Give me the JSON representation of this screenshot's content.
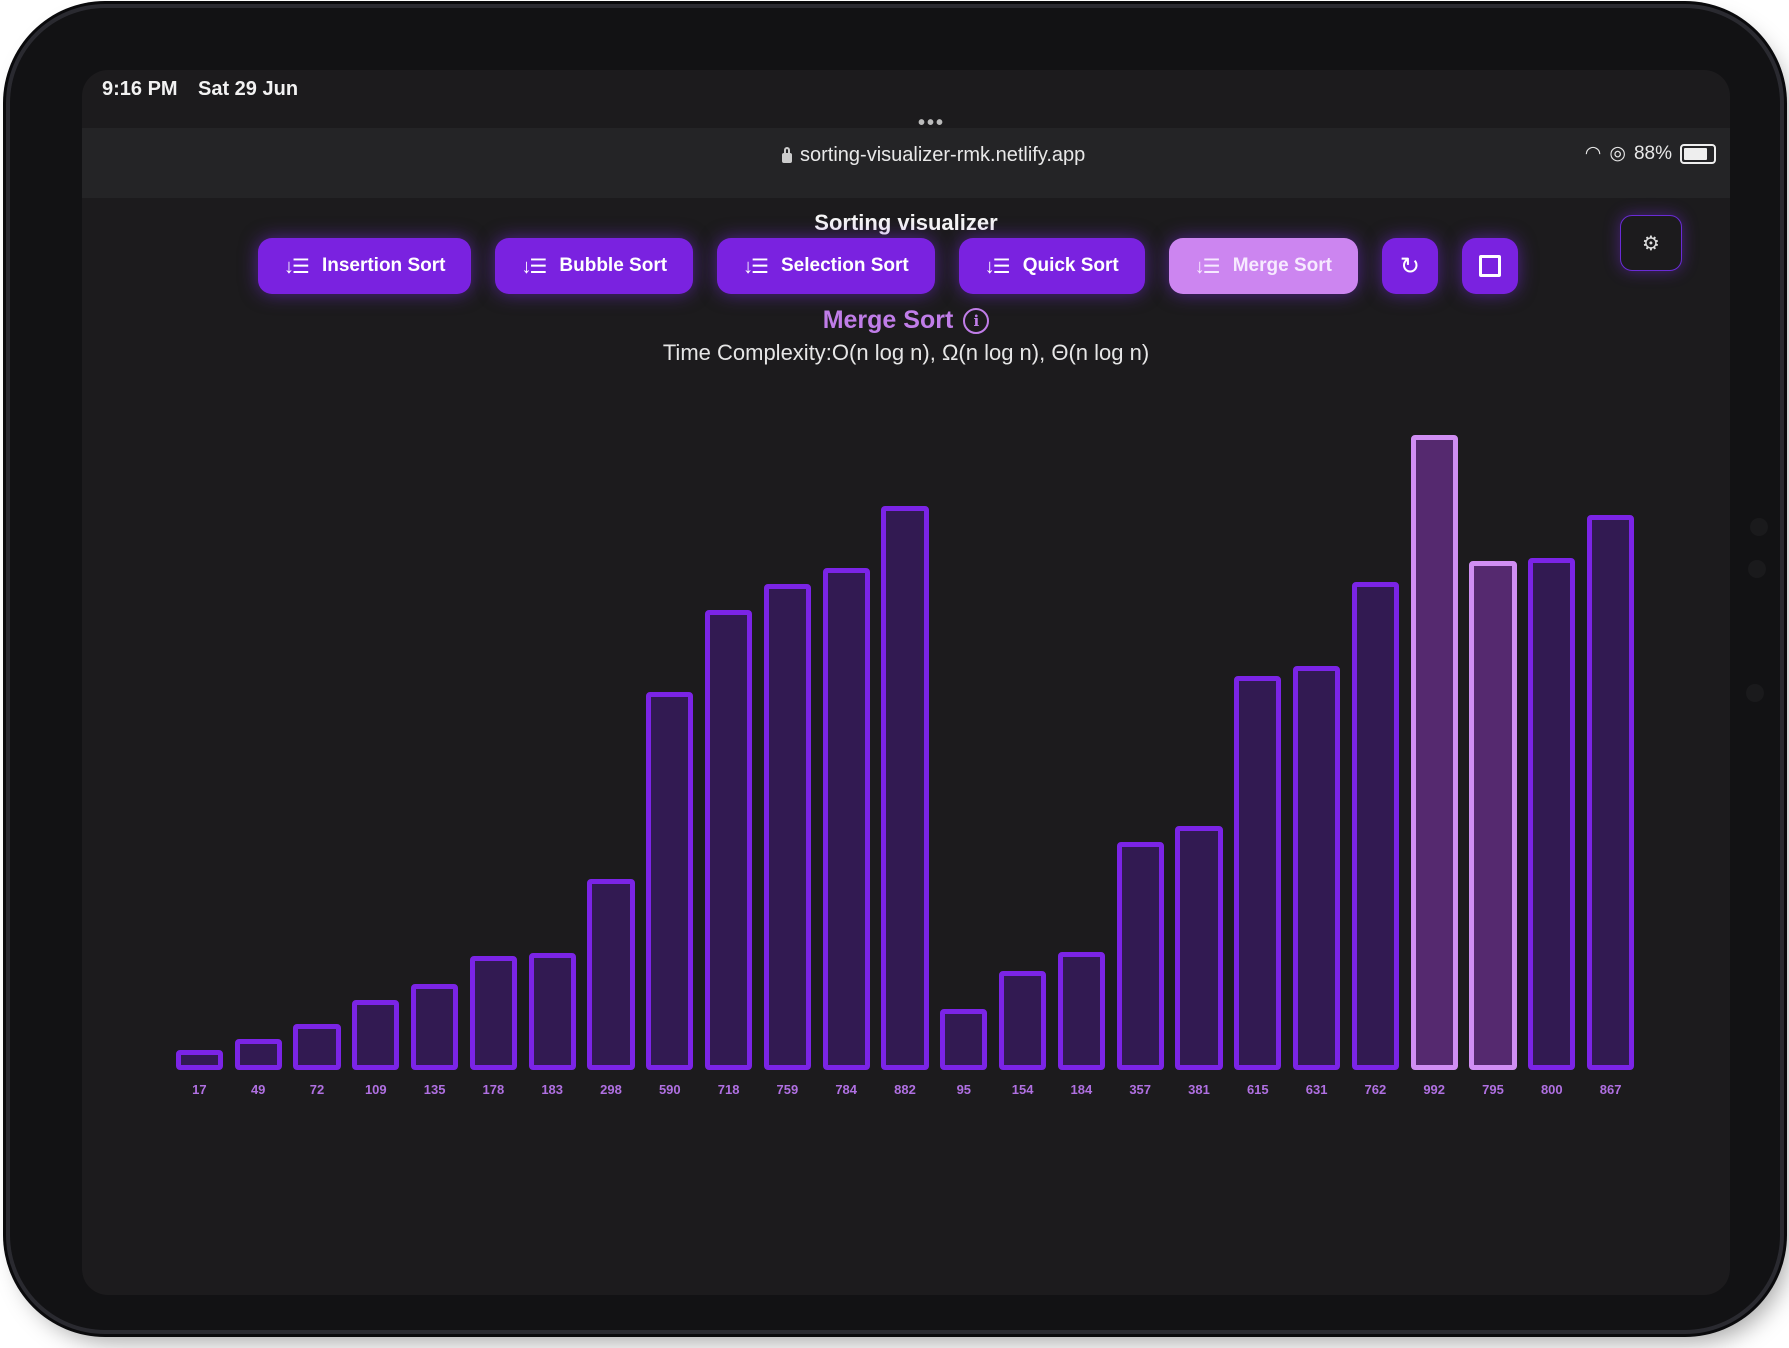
{
  "status": {
    "time": "9:16 PM",
    "date": "Sat 29 Jun",
    "battery": "88%"
  },
  "browser": {
    "url": "sorting-visualizer-rmk.netlify.app"
  },
  "app": {
    "title": "Sorting visualizer",
    "algorithms": [
      {
        "label": "Insertion Sort",
        "active": false
      },
      {
        "label": "Bubble Sort",
        "active": false
      },
      {
        "label": "Selection Sort",
        "active": false
      },
      {
        "label": "Quick Sort",
        "active": false
      },
      {
        "label": "Merge Sort",
        "active": true
      }
    ],
    "selected_algorithm": "Merge Sort",
    "complexity_label": "Time Complexity:",
    "complexity_value": "O(n log n), Ω(n log n), Θ(n log n)"
  },
  "colors": {
    "accent": "#7a22e0",
    "active": "#cc85f0",
    "bar_fill": "#321a52",
    "bar_border": "#7b24e6",
    "bar_highlight_border": "#d08ef3"
  },
  "chart_data": {
    "type": "bar",
    "values": [
      17,
      49,
      72,
      109,
      135,
      178,
      183,
      298,
      590,
      718,
      759,
      784,
      882,
      95,
      154,
      184,
      357,
      381,
      615,
      631,
      762,
      992,
      795,
      800,
      867
    ],
    "highlighted_indices": [
      21,
      22
    ],
    "ylim": [
      0,
      1000
    ]
  }
}
